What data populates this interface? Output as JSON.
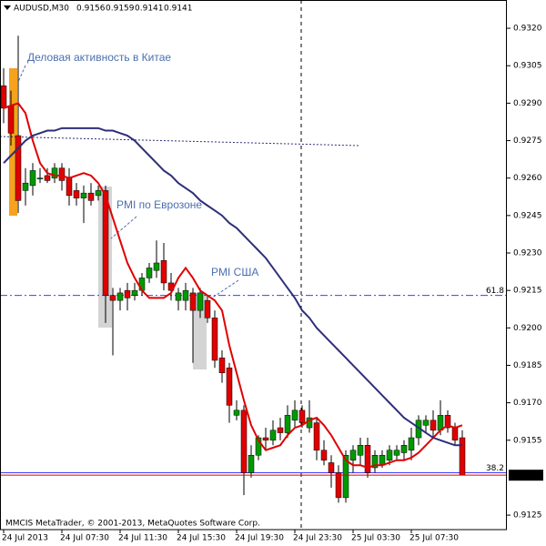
{
  "chart_data": {
    "type": "candlestick",
    "symbol": "AUDUSD,M30",
    "footer": "MMCIS MetaTrader, © 2001-2013, MetaQuotes Software Corp.",
    "annotations": [
      "Деловая активность в Китае",
      "PMI по Еврозоне",
      "PMI США"
    ],
    "categories": [
      "24 Jul 2013",
      null,
      null,
      null,
      null,
      null,
      null,
      null,
      "24 Jul 07:30",
      null,
      null,
      null,
      null,
      null,
      null,
      null,
      "24 Jul 11:30",
      null,
      null,
      null,
      null,
      null,
      null,
      null,
      "24 Jul 15:30",
      null,
      null,
      null,
      null,
      null,
      null,
      null,
      "24 Jul 19:30",
      null,
      null,
      null,
      null,
      null,
      null,
      null,
      "24 Jul 23:30",
      null,
      null,
      null,
      null,
      null,
      null,
      null,
      "25 Jul 03:30",
      null,
      null,
      null,
      null,
      null,
      null,
      null,
      "25 Jul 07:30",
      null,
      null,
      null,
      null,
      null,
      null,
      null
    ],
    "open": [
      0.9297,
      0.9289,
      0.9277,
      0.9255,
      0.9257,
      0.926,
      0.9261,
      0.926,
      0.9264,
      0.926,
      0.9255,
      0.9252,
      0.9254,
      0.9253,
      0.9255,
      0.9213,
      0.9211,
      0.9215,
      0.9213,
      0.9215,
      0.922,
      0.9223,
      0.9227,
      0.9218,
      0.9211,
      0.9211,
      0.9214,
      0.9207,
      0.9211,
      0.9204,
      0.9188,
      0.9184,
      0.9165,
      0.9167,
      0.9142,
      0.9149,
      0.9156,
      0.9155,
      0.916,
      0.9158,
      0.9163,
      0.9167,
      0.916,
      0.9162,
      0.9151,
      0.9146,
      0.9142,
      0.9132,
      0.9147,
      0.9149,
      0.9153,
      0.9144,
      0.9145,
      0.9147,
      0.9149,
      0.915,
      0.9151,
      0.9156,
      0.9161,
      0.9163,
      0.9159,
      0.9165,
      0.916,
      0.9156
    ],
    "high": [
      0.9304,
      0.9295,
      0.9317,
      0.9264,
      0.9266,
      0.9264,
      0.9264,
      0.9266,
      0.9266,
      0.9264,
      0.9258,
      0.9257,
      0.9258,
      0.9257,
      0.9257,
      0.9216,
      0.9216,
      0.9218,
      0.9218,
      0.9222,
      0.9226,
      0.9235,
      0.9234,
      0.9222,
      0.9216,
      0.9218,
      0.9216,
      0.9216,
      0.9213,
      0.9207,
      0.9191,
      0.9186,
      0.9171,
      0.9169,
      0.9153,
      0.9157,
      0.916,
      0.9163,
      0.9164,
      0.9169,
      0.9171,
      0.9169,
      0.9171,
      0.9164,
      0.9155,
      0.9149,
      0.9145,
      0.9151,
      0.9153,
      0.9156,
      0.9156,
      0.9151,
      0.9151,
      0.9153,
      0.9153,
      0.9155,
      0.916,
      0.9165,
      0.9165,
      0.9167,
      0.9171,
      0.9167,
      0.9162,
      0.9159
    ],
    "low": [
      0.9282,
      0.9273,
      0.9246,
      0.9249,
      0.9253,
      0.9258,
      0.9258,
      0.9258,
      0.9255,
      0.9249,
      0.9249,
      0.9242,
      0.9249,
      0.9251,
      0.9202,
      0.9189,
      0.9207,
      0.9207,
      0.9211,
      0.9213,
      0.9218,
      0.922,
      0.9215,
      0.9211,
      0.9207,
      0.9207,
      0.9186,
      0.9204,
      0.9202,
      0.9184,
      0.9178,
      0.9162,
      0.9163,
      0.9133,
      0.914,
      0.9147,
      0.9151,
      0.9153,
      0.9155,
      0.9156,
      0.916,
      0.916,
      0.9158,
      0.9147,
      0.9145,
      0.9136,
      0.913,
      0.913,
      0.9142,
      0.9145,
      0.914,
      0.9142,
      0.9144,
      0.9145,
      0.9147,
      0.9147,
      0.9147,
      0.9153,
      0.9158,
      0.9156,
      0.9157,
      0.9158,
      0.9153,
      0.9141
    ],
    "close": [
      0.9288,
      0.9278,
      0.9251,
      0.9258,
      0.9263,
      0.926,
      0.9259,
      0.9264,
      0.9259,
      0.9253,
      0.9252,
      0.9254,
      0.9251,
      0.9255,
      0.9213,
      0.9211,
      0.9214,
      0.9212,
      0.9215,
      0.922,
      0.9224,
      0.9226,
      0.9218,
      0.9215,
      0.9214,
      0.9215,
      0.9207,
      0.9214,
      0.9204,
      0.9187,
      0.9182,
      0.9169,
      0.9167,
      0.9142,
      0.9149,
      0.9156,
      0.9155,
      0.9159,
      0.9158,
      0.9165,
      0.9167,
      0.9162,
      0.9164,
      0.9151,
      0.9147,
      0.9142,
      0.9132,
      0.9149,
      0.9151,
      0.9153,
      0.9142,
      0.9149,
      0.9149,
      0.9151,
      0.9151,
      0.9153,
      0.9156,
      0.9163,
      0.9163,
      0.9159,
      0.9165,
      0.916,
      0.9155,
      0.9141
    ],
    "up_color": "#009900",
    "down_color": "#e00000",
    "lines": [
      {
        "color": "#e00000",
        "values": [
          0.9288,
          0.9289,
          0.929,
          0.9286,
          0.9275,
          0.9266,
          0.9262,
          0.9261,
          0.9261,
          0.926,
          0.9261,
          0.9262,
          0.9261,
          0.9258,
          0.9253,
          0.9244,
          0.9235,
          0.9226,
          0.922,
          0.9215,
          0.9212,
          0.9212,
          0.9212,
          0.9214,
          0.922,
          0.9224,
          0.922,
          0.9215,
          0.9213,
          0.9211,
          0.9207,
          0.9193,
          0.9182,
          0.9171,
          0.9161,
          0.9155,
          0.9151,
          0.9152,
          0.9153,
          0.9157,
          0.916,
          0.9161,
          0.9163,
          0.9164,
          0.9161,
          0.9157,
          0.9152,
          0.9147,
          0.9145,
          0.9145,
          0.9144,
          0.9145,
          0.9145,
          0.9146,
          0.9147,
          0.9147,
          0.9148,
          0.915,
          0.9153,
          0.9156,
          0.9159,
          0.9161,
          0.916,
          0.9161
        ]
      },
      {
        "color": "#2e2e7a",
        "values": [
          0.9266,
          0.9269,
          0.9272,
          0.9275,
          0.9277,
          0.9278,
          0.9279,
          0.9279,
          0.928,
          0.928,
          0.928,
          0.928,
          0.928,
          0.928,
          0.9279,
          0.9279,
          0.9278,
          0.9277,
          0.9275,
          0.9272,
          0.9269,
          0.9266,
          0.9263,
          0.9261,
          0.9258,
          0.9256,
          0.9254,
          0.9251,
          0.9249,
          0.9247,
          0.9245,
          0.9242,
          0.924,
          0.9237,
          0.9234,
          0.9231,
          0.9228,
          0.9224,
          0.922,
          0.9216,
          0.9212,
          0.9207,
          0.9204,
          0.92,
          0.9197,
          0.9194,
          0.9191,
          0.9188,
          0.9185,
          0.9182,
          0.9179,
          0.9176,
          0.9173,
          0.917,
          0.9167,
          0.9164,
          0.9162,
          0.916,
          0.9158,
          0.9156,
          0.9155,
          0.9154,
          0.9153,
          0.9153
        ]
      }
    ],
    "levels": [
      {
        "label": "61.8",
        "value": 0.9213
      },
      {
        "label": "38.2",
        "value": 0.9142
      }
    ],
    "ylim": [
      0.91192,
      0.93295
    ],
    "yticks": [
      {
        "value": 0.932,
        "label": "0.9320"
      },
      0.9305,
      {
        "value": 0.929,
        "label": "0.9290"
      },
      0.9275,
      {
        "value": 0.926,
        "label": "0.9260"
      },
      0.9245,
      {
        "value": 0.923,
        "label": "0.9230"
      },
      0.9215,
      {
        "value": 0.92,
        "label": "0.9200"
      },
      0.9185,
      {
        "value": 0.917,
        "label": "0.9170"
      },
      0.9155,
      0.9125
    ]
  }
}
